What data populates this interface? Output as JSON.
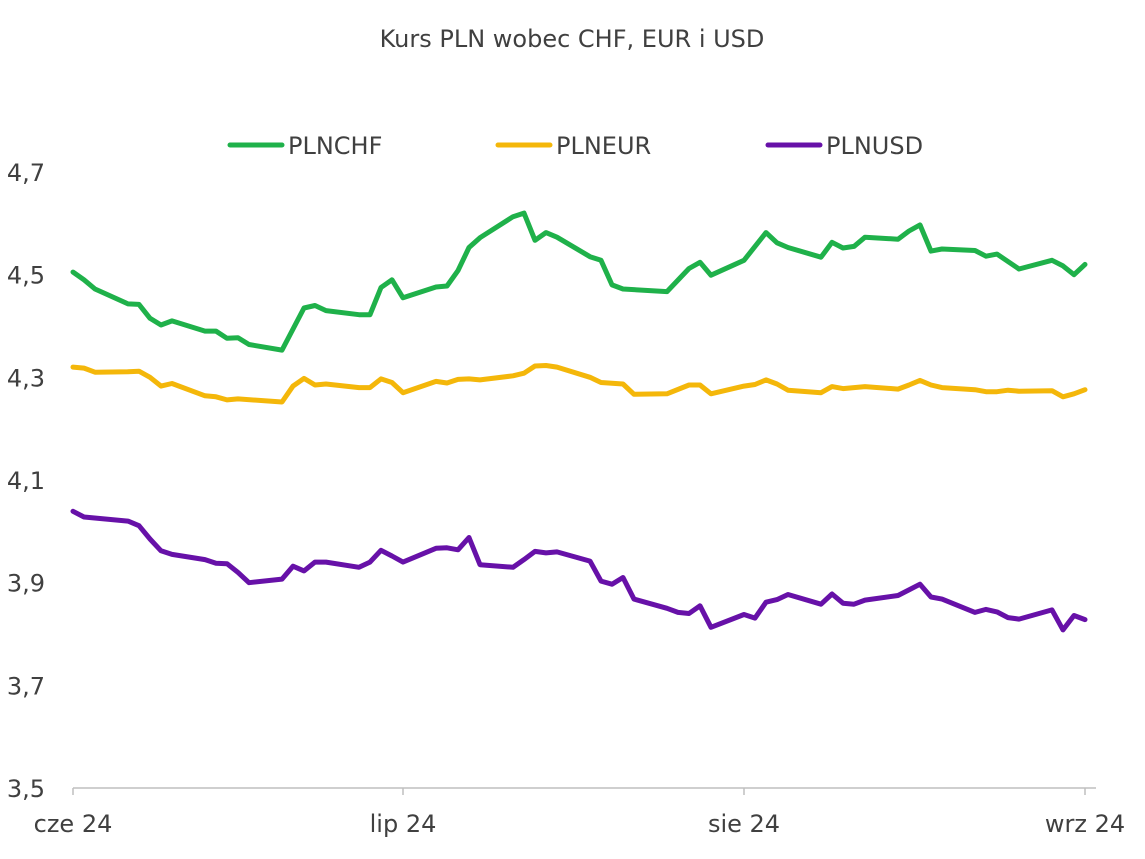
{
  "chart_data": {
    "type": "line",
    "title": "Kurs PLN wobec CHF, EUR i USD",
    "xlabel": "",
    "ylabel": "",
    "ylim": [
      3.5,
      4.7
    ],
    "yticks": [
      "3,5",
      "3,7",
      "3,9",
      "4,1",
      "4,3",
      "4,5",
      "4,7"
    ],
    "yticks_values": [
      3.5,
      3.7,
      3.9,
      4.1,
      4.3,
      4.5,
      4.7
    ],
    "xlim": [
      "2024-06-01",
      "2024-09-02"
    ],
    "xticks": [
      {
        "label": "cze 24",
        "date": "2024-06-01"
      },
      {
        "label": "lip 24",
        "date": "2024-07-01"
      },
      {
        "label": "sie 24",
        "date": "2024-08-01"
      },
      {
        "label": "wrz 24",
        "date": "2024-09-01"
      }
    ],
    "grid": false,
    "legend": "top",
    "series": [
      {
        "name": "PLNCHF",
        "color": "#1fb14a",
        "points": [
          [
            "2024-06-01",
            4.505
          ],
          [
            "2024-06-02",
            4.49
          ],
          [
            "2024-06-03",
            4.472
          ],
          [
            "2024-06-06",
            4.443
          ],
          [
            "2024-06-07",
            4.442
          ],
          [
            "2024-06-08",
            4.415
          ],
          [
            "2024-06-09",
            4.402
          ],
          [
            "2024-06-10",
            4.41
          ],
          [
            "2024-06-13",
            4.39
          ],
          [
            "2024-06-14",
            4.39
          ],
          [
            "2024-06-15",
            4.376
          ],
          [
            "2024-06-16",
            4.377
          ],
          [
            "2024-06-17",
            4.364
          ],
          [
            "2024-06-20",
            4.353
          ],
          [
            "2024-06-22",
            4.435
          ],
          [
            "2024-06-23",
            4.44
          ],
          [
            "2024-06-24",
            4.43
          ],
          [
            "2024-06-27",
            4.422
          ],
          [
            "2024-06-28",
            4.422
          ],
          [
            "2024-06-29",
            4.475
          ],
          [
            "2024-06-30",
            4.49
          ],
          [
            "2024-07-01",
            4.455
          ],
          [
            "2024-07-04",
            4.476
          ],
          [
            "2024-07-05",
            4.478
          ],
          [
            "2024-07-06",
            4.508
          ],
          [
            "2024-07-07",
            4.553
          ],
          [
            "2024-07-08",
            4.572
          ],
          [
            "2024-07-11",
            4.613
          ],
          [
            "2024-07-12",
            4.62
          ],
          [
            "2024-07-13",
            4.567
          ],
          [
            "2024-07-14",
            4.582
          ],
          [
            "2024-07-15",
            4.573
          ],
          [
            "2024-07-18",
            4.535
          ],
          [
            "2024-07-19",
            4.528
          ],
          [
            "2024-07-20",
            4.48
          ],
          [
            "2024-07-21",
            4.472
          ],
          [
            "2024-07-25",
            4.467
          ],
          [
            "2024-07-27",
            4.512
          ],
          [
            "2024-07-28",
            4.524
          ],
          [
            "2024-07-29",
            4.499
          ],
          [
            "2024-08-01",
            4.528
          ],
          [
            "2024-08-03",
            4.582
          ],
          [
            "2024-08-04",
            4.562
          ],
          [
            "2024-08-05",
            4.553
          ],
          [
            "2024-08-08",
            4.534
          ],
          [
            "2024-08-09",
            4.563
          ],
          [
            "2024-08-10",
            4.552
          ],
          [
            "2024-08-11",
            4.555
          ],
          [
            "2024-08-12",
            4.573
          ],
          [
            "2024-08-15",
            4.569
          ],
          [
            "2024-08-16",
            4.585
          ],
          [
            "2024-08-17",
            4.597
          ],
          [
            "2024-08-18",
            4.546
          ],
          [
            "2024-08-19",
            4.55
          ],
          [
            "2024-08-22",
            4.547
          ],
          [
            "2024-08-23",
            4.536
          ],
          [
            "2024-08-24",
            4.54
          ],
          [
            "2024-08-26",
            4.511
          ],
          [
            "2024-08-29",
            4.528
          ],
          [
            "2024-08-30",
            4.517
          ],
          [
            "2024-08-31",
            4.5
          ],
          [
            "2024-09-01",
            4.52
          ]
        ]
      },
      {
        "name": "PLNEUR",
        "color": "#f4b70a",
        "points": [
          [
            "2024-06-01",
            4.32
          ],
          [
            "2024-06-02",
            4.318
          ],
          [
            "2024-06-03",
            4.31
          ],
          [
            "2024-06-06",
            4.311
          ],
          [
            "2024-06-07",
            4.312
          ],
          [
            "2024-06-08",
            4.3
          ],
          [
            "2024-06-09",
            4.283
          ],
          [
            "2024-06-10",
            4.288
          ],
          [
            "2024-06-13",
            4.264
          ],
          [
            "2024-06-14",
            4.262
          ],
          [
            "2024-06-15",
            4.256
          ],
          [
            "2024-06-16",
            4.258
          ],
          [
            "2024-06-20",
            4.252
          ],
          [
            "2024-06-21",
            4.283
          ],
          [
            "2024-06-22",
            4.298
          ],
          [
            "2024-06-23",
            4.285
          ],
          [
            "2024-06-24",
            4.287
          ],
          [
            "2024-06-27",
            4.28
          ],
          [
            "2024-06-28",
            4.28
          ],
          [
            "2024-06-29",
            4.297
          ],
          [
            "2024-06-30",
            4.29
          ],
          [
            "2024-07-01",
            4.27
          ],
          [
            "2024-07-04",
            4.292
          ],
          [
            "2024-07-05",
            4.289
          ],
          [
            "2024-07-06",
            4.296
          ],
          [
            "2024-07-07",
            4.297
          ],
          [
            "2024-07-08",
            4.295
          ],
          [
            "2024-07-11",
            4.303
          ],
          [
            "2024-07-12",
            4.308
          ],
          [
            "2024-07-13",
            4.322
          ],
          [
            "2024-07-14",
            4.323
          ],
          [
            "2024-07-15",
            4.32
          ],
          [
            "2024-07-18",
            4.3
          ],
          [
            "2024-07-19",
            4.29
          ],
          [
            "2024-07-21",
            4.287
          ],
          [
            "2024-07-22",
            4.267
          ],
          [
            "2024-07-25",
            4.268
          ],
          [
            "2024-07-27",
            4.285
          ],
          [
            "2024-07-28",
            4.285
          ],
          [
            "2024-07-29",
            4.268
          ],
          [
            "2024-08-01",
            4.283
          ],
          [
            "2024-08-02",
            4.286
          ],
          [
            "2024-08-03",
            4.295
          ],
          [
            "2024-08-04",
            4.287
          ],
          [
            "2024-08-05",
            4.275
          ],
          [
            "2024-08-08",
            4.27
          ],
          [
            "2024-08-09",
            4.282
          ],
          [
            "2024-08-10",
            4.278
          ],
          [
            "2024-08-12",
            4.282
          ],
          [
            "2024-08-15",
            4.277
          ],
          [
            "2024-08-16",
            4.285
          ],
          [
            "2024-08-17",
            4.294
          ],
          [
            "2024-08-18",
            4.285
          ],
          [
            "2024-08-19",
            4.28
          ],
          [
            "2024-08-22",
            4.276
          ],
          [
            "2024-08-23",
            4.272
          ],
          [
            "2024-08-24",
            4.272
          ],
          [
            "2024-08-25",
            4.275
          ],
          [
            "2024-08-26",
            4.273
          ],
          [
            "2024-08-29",
            4.274
          ],
          [
            "2024-08-30",
            4.262
          ],
          [
            "2024-08-31",
            4.268
          ],
          [
            "2024-09-01",
            4.276
          ]
        ]
      },
      {
        "name": "PLNUSD",
        "color": "#6711a8",
        "points": [
          [
            "2024-06-01",
            4.039
          ],
          [
            "2024-06-02",
            4.028
          ],
          [
            "2024-06-06",
            4.02
          ],
          [
            "2024-06-07",
            4.011
          ],
          [
            "2024-06-08",
            3.985
          ],
          [
            "2024-06-09",
            3.962
          ],
          [
            "2024-06-10",
            3.955
          ],
          [
            "2024-06-13",
            3.945
          ],
          [
            "2024-06-14",
            3.938
          ],
          [
            "2024-06-15",
            3.937
          ],
          [
            "2024-06-16",
            3.92
          ],
          [
            "2024-06-17",
            3.9
          ],
          [
            "2024-06-20",
            3.907
          ],
          [
            "2024-06-21",
            3.932
          ],
          [
            "2024-06-22",
            3.923
          ],
          [
            "2024-06-23",
            3.94
          ],
          [
            "2024-06-24",
            3.94
          ],
          [
            "2024-06-27",
            3.93
          ],
          [
            "2024-06-28",
            3.94
          ],
          [
            "2024-06-29",
            3.963
          ],
          [
            "2024-06-30",
            3.952
          ],
          [
            "2024-07-01",
            3.94
          ],
          [
            "2024-07-04",
            3.967
          ],
          [
            "2024-07-05",
            3.968
          ],
          [
            "2024-07-06",
            3.964
          ],
          [
            "2024-07-07",
            3.988
          ],
          [
            "2024-07-08",
            3.935
          ],
          [
            "2024-07-11",
            3.93
          ],
          [
            "2024-07-12",
            3.945
          ],
          [
            "2024-07-13",
            3.961
          ],
          [
            "2024-07-14",
            3.958
          ],
          [
            "2024-07-15",
            3.96
          ],
          [
            "2024-07-18",
            3.942
          ],
          [
            "2024-07-19",
            3.903
          ],
          [
            "2024-07-20",
            3.897
          ],
          [
            "2024-07-21",
            3.91
          ],
          [
            "2024-07-22",
            3.868
          ],
          [
            "2024-07-25",
            3.85
          ],
          [
            "2024-07-26",
            3.842
          ],
          [
            "2024-07-27",
            3.84
          ],
          [
            "2024-07-28",
            3.855
          ],
          [
            "2024-07-29",
            3.813
          ],
          [
            "2024-08-01",
            3.838
          ],
          [
            "2024-08-02",
            3.831
          ],
          [
            "2024-08-03",
            3.862
          ],
          [
            "2024-08-04",
            3.867
          ],
          [
            "2024-08-05",
            3.877
          ],
          [
            "2024-08-08",
            3.858
          ],
          [
            "2024-08-09",
            3.878
          ],
          [
            "2024-08-10",
            3.86
          ],
          [
            "2024-08-11",
            3.858
          ],
          [
            "2024-08-12",
            3.866
          ],
          [
            "2024-08-15",
            3.875
          ],
          [
            "2024-08-16",
            3.886
          ],
          [
            "2024-08-17",
            3.897
          ],
          [
            "2024-08-18",
            3.872
          ],
          [
            "2024-08-19",
            3.868
          ],
          [
            "2024-08-22",
            3.842
          ],
          [
            "2024-08-23",
            3.848
          ],
          [
            "2024-08-24",
            3.843
          ],
          [
            "2024-08-25",
            3.832
          ],
          [
            "2024-08-26",
            3.829
          ],
          [
            "2024-08-29",
            3.847
          ],
          [
            "2024-08-30",
            3.808
          ],
          [
            "2024-08-31",
            3.836
          ],
          [
            "2024-09-01",
            3.828
          ]
        ]
      }
    ]
  }
}
